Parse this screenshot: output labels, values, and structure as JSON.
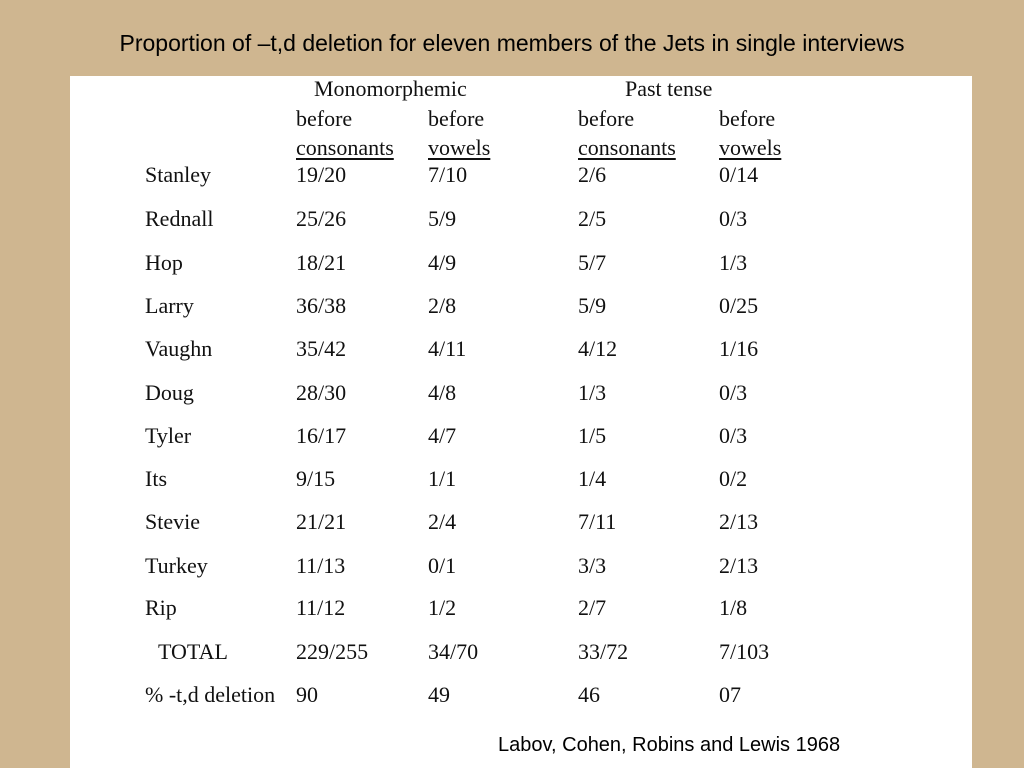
{
  "title": "Proportion of –t,d deletion for eleven members of the Jets in single interviews",
  "group_headers": {
    "monomorphemic": "Monomorphemic",
    "past_tense": "Past tense"
  },
  "column_headers": [
    {
      "line1": "before",
      "line2": "consonants"
    },
    {
      "line1": "before",
      "line2": "vowels"
    },
    {
      "line1": "before",
      "line2": "consonants"
    },
    {
      "line1": "before",
      "line2": "vowels"
    }
  ],
  "rows": [
    {
      "name": "Stanley",
      "values": [
        "19/20",
        "7/10",
        "2/6",
        "0/14"
      ]
    },
    {
      "name": "Rednall",
      "values": [
        "25/26",
        "5/9",
        "2/5",
        "0/3"
      ]
    },
    {
      "name": "Hop",
      "values": [
        "18/21",
        "4/9",
        "5/7",
        "1/3"
      ]
    },
    {
      "name": "Larry",
      "values": [
        "36/38",
        "2/8",
        "5/9",
        "0/25"
      ]
    },
    {
      "name": "Vaughn",
      "values": [
        "35/42",
        "4/11",
        "4/12",
        "1/16"
      ]
    },
    {
      "name": "Doug",
      "values": [
        "28/30",
        "4/8",
        "1/3",
        "0/3"
      ]
    },
    {
      "name": "Tyler",
      "values": [
        "16/17",
        "4/7",
        "1/5",
        "0/3"
      ]
    },
    {
      "name": "Its",
      "values": [
        "9/15",
        "1/1",
        "1/4",
        "0/2"
      ]
    },
    {
      "name": "Stevie",
      "values": [
        "21/21",
        "2/4",
        "7/11",
        "2/13"
      ]
    },
    {
      "name": "Turkey",
      "values": [
        "11/13",
        "0/1",
        "3/3",
        "2/13"
      ]
    },
    {
      "name": "Rip",
      "values": [
        "11/12",
        "1/2",
        "2/7",
        "1/8"
      ]
    },
    {
      "name": "TOTAL",
      "values": [
        "229/255",
        "34/70",
        "33/72",
        "7/103"
      ]
    },
    {
      "name": "% -t,d deletion",
      "values": [
        "90",
        "49",
        "46",
        "07"
      ]
    }
  ],
  "citation": "Labov, Cohen, Robins and Lewis 1968",
  "colors": {
    "background": "#cfb690",
    "panel": "#ffffff",
    "text": "#000000"
  }
}
